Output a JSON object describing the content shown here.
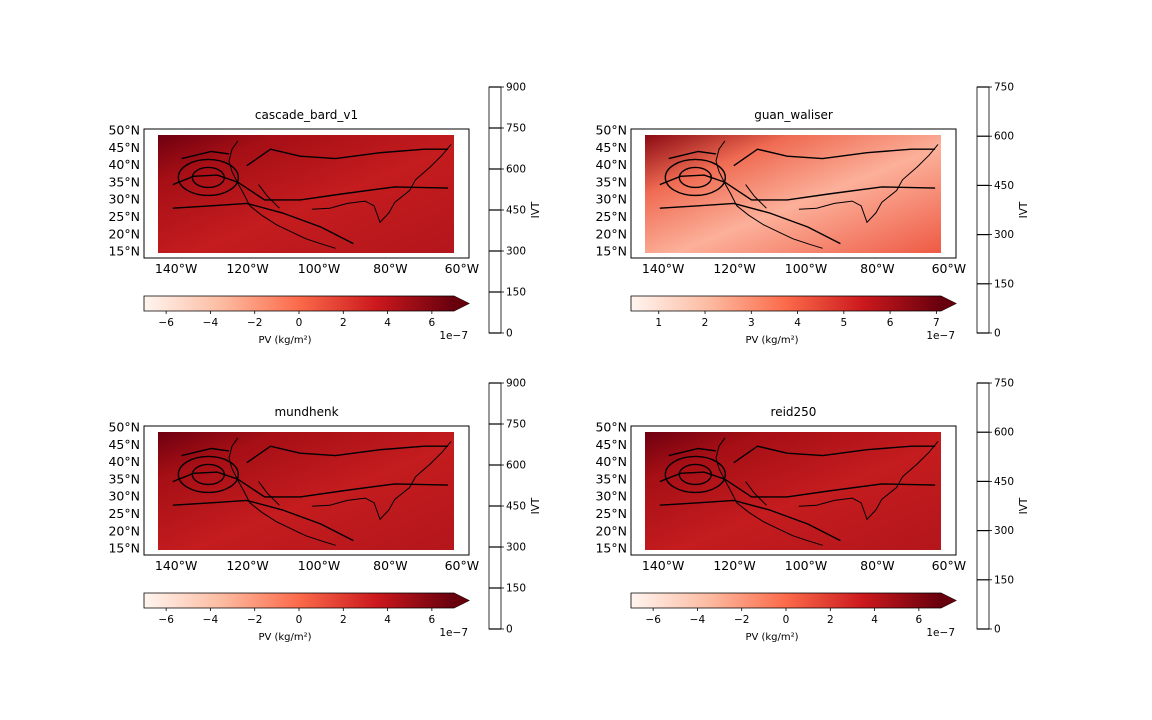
{
  "chart_data": [
    {
      "type": "heatmap",
      "title": "cascade_bard_v1",
      "map_lon_ticks": [
        "140°W",
        "120°W",
        "100°W",
        "80°W",
        "60°W"
      ],
      "map_lat_ticks": [
        "50°N",
        "45°N",
        "40°N",
        "35°N",
        "30°N",
        "25°N",
        "20°N",
        "15°N"
      ],
      "pv_colorbar": {
        "label": "PV (kg/m$^2$)",
        "display_label": "PV (kg/m²)",
        "ticks": [
          "−6",
          "−4",
          "−2",
          "0",
          "2",
          "4",
          "6"
        ],
        "range": [
          -7,
          7
        ],
        "offset": "1e−7",
        "colormap": "Reds"
      },
      "ivt_colorbar": {
        "label": "IVT",
        "ticks": [
          "0",
          "150",
          "300",
          "450",
          "600",
          "750",
          "900"
        ],
        "range": [
          0,
          900
        ]
      }
    },
    {
      "type": "heatmap",
      "title": "guan_waliser",
      "map_lon_ticks": [
        "140°W",
        "120°W",
        "100°W",
        "80°W",
        "60°W"
      ],
      "map_lat_ticks": [
        "50°N",
        "45°N",
        "40°N",
        "35°N",
        "30°N",
        "25°N",
        "20°N",
        "15°N"
      ],
      "pv_colorbar": {
        "label": "PV (kg/m$^2$)",
        "display_label": "PV (kg/m²)",
        "ticks": [
          "1",
          "2",
          "3",
          "4",
          "5",
          "6",
          "7"
        ],
        "range": [
          0.4,
          7.1
        ],
        "offset": "1e−7",
        "colormap": "Reds"
      },
      "ivt_colorbar": {
        "label": "IVT",
        "ticks": [
          "0",
          "150",
          "300",
          "450",
          "600",
          "750"
        ],
        "range": [
          0,
          750
        ]
      }
    },
    {
      "type": "heatmap",
      "title": "mundhenk",
      "map_lon_ticks": [
        "140°W",
        "120°W",
        "100°W",
        "80°W",
        "60°W"
      ],
      "map_lat_ticks": [
        "50°N",
        "45°N",
        "40°N",
        "35°N",
        "30°N",
        "25°N",
        "20°N",
        "15°N"
      ],
      "pv_colorbar": {
        "label": "PV (kg/m$^2$)",
        "display_label": "PV (kg/m²)",
        "ticks": [
          "−6",
          "−4",
          "−2",
          "0",
          "2",
          "4",
          "6"
        ],
        "range": [
          -7,
          7
        ],
        "offset": "1e−7",
        "colormap": "Reds"
      },
      "ivt_colorbar": {
        "label": "IVT",
        "ticks": [
          "0",
          "150",
          "300",
          "450",
          "600",
          "750",
          "900"
        ],
        "range": [
          0,
          900
        ]
      }
    },
    {
      "type": "heatmap",
      "title": "reid250",
      "map_lon_ticks": [
        "140°W",
        "120°W",
        "100°W",
        "80°W",
        "60°W"
      ],
      "map_lat_ticks": [
        "50°N",
        "45°N",
        "40°N",
        "35°N",
        "30°N",
        "25°N",
        "20°N",
        "15°N"
      ],
      "pv_colorbar": {
        "label": "PV (kg/m$^2$)",
        "display_label": "PV (kg/m²)",
        "ticks": [
          "−6",
          "−4",
          "−2",
          "0",
          "2",
          "4",
          "6"
        ],
        "range": [
          -7,
          7
        ],
        "offset": "1e−7",
        "colormap": "Reds"
      },
      "ivt_colorbar": {
        "label": "IVT",
        "ticks": [
          "0",
          "150",
          "300",
          "450",
          "600",
          "750"
        ],
        "range": [
          0,
          750
        ]
      }
    }
  ]
}
